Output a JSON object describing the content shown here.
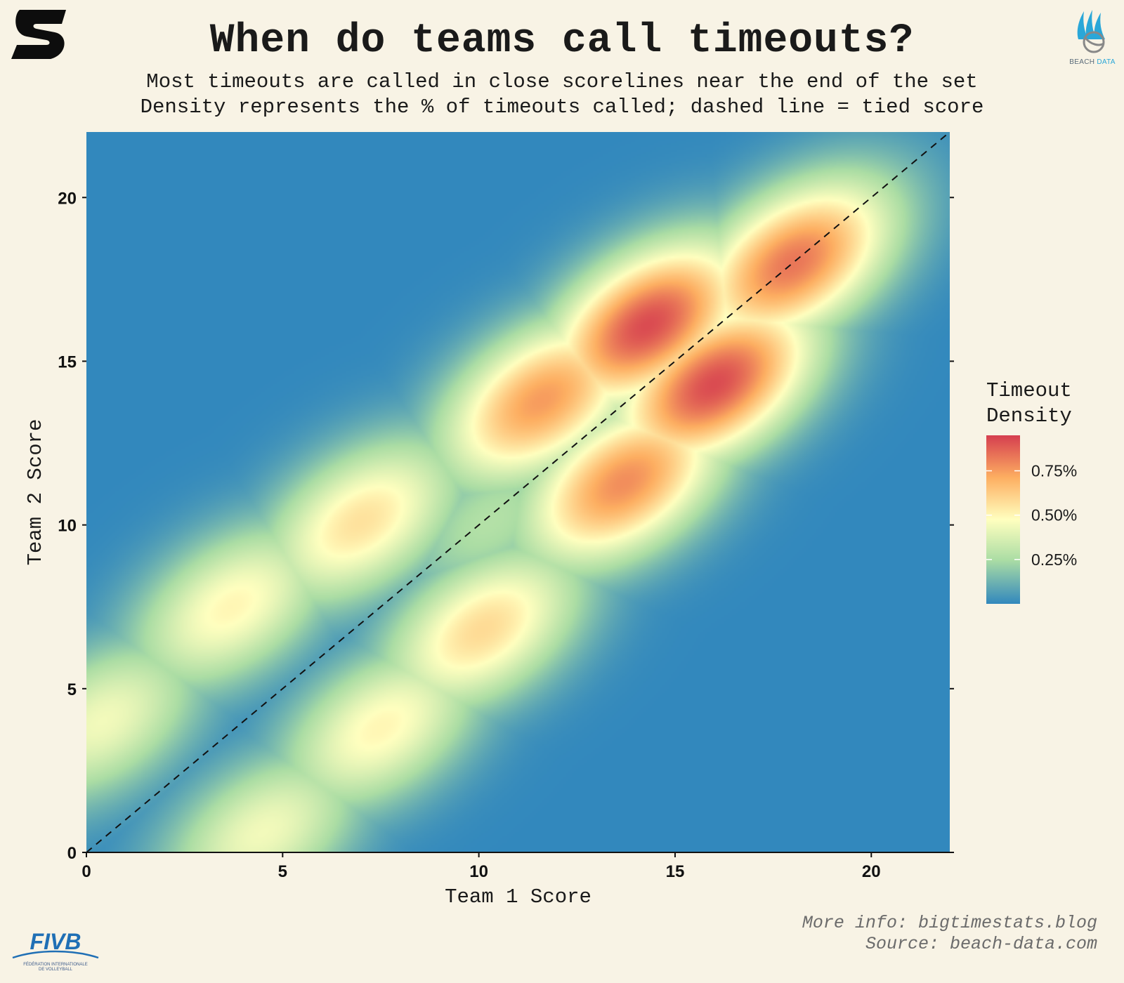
{
  "title": "When do teams call timeouts?",
  "subtitle_1": "Most timeouts are called in close scorelines near the end of the set",
  "subtitle_2": "Density represents the % of timeouts called; dashed line = tied score",
  "caption_1": "More info: bigtimestats.blog",
  "caption_2": "Source: beach-data.com",
  "logos": {
    "brand_icon": "s-brand-icon",
    "beach_data": "beach-volleyball-icon",
    "beach_data_label_1": "BEACH",
    "beach_data_label_2": "DATA",
    "fivb": "FIVB",
    "fivb_line_1": "FÉDÉRATION INTERNATIONALE",
    "fivb_line_2": "DE VOLLEYBALL"
  },
  "colors": {
    "background": "#f8f3e5",
    "scale_low": "#3288bd",
    "scale_mid": "#ffffbf",
    "scale_high": "#d53e4f"
  },
  "chart_data": {
    "type": "heatmap",
    "title": "When do teams call timeouts?",
    "xlabel": "Team 1 Score",
    "ylabel": "Team 2 Score",
    "xlim": [
      0,
      22
    ],
    "ylim": [
      0,
      22
    ],
    "x_ticks": [
      0,
      5,
      10,
      15,
      20
    ],
    "y_ticks": [
      0,
      5,
      10,
      15,
      20
    ],
    "reference_line": {
      "type": "dashed",
      "meaning": "tied score",
      "from": [
        0,
        0
      ],
      "to": [
        22,
        22
      ]
    },
    "legend": {
      "title_1": "Timeout",
      "title_2": "Density",
      "breaks": [
        "0.25%",
        "0.50%",
        "0.75%"
      ],
      "break_values": [
        0.25,
        0.5,
        0.75
      ],
      "range": [
        0.0,
        0.95
      ],
      "placement": "right"
    },
    "density_peaks": [
      {
        "team1": 14.3,
        "team2": 16.1,
        "density": 0.92
      },
      {
        "team1": 16.0,
        "team2": 14.3,
        "density": 0.92
      },
      {
        "team1": 18.0,
        "team2": 18.0,
        "density": 0.83
      },
      {
        "team1": 11.6,
        "team2": 13.8,
        "density": 0.75
      },
      {
        "team1": 13.7,
        "team2": 11.3,
        "density": 0.78
      },
      {
        "team1": 7.0,
        "team2": 10.1,
        "density": 0.56
      },
      {
        "team1": 10.1,
        "team2": 6.8,
        "density": 0.58
      },
      {
        "team1": 3.7,
        "team2": 7.5,
        "density": 0.5
      },
      {
        "team1": 7.5,
        "team2": 3.8,
        "density": 0.5
      },
      {
        "team1": 0.4,
        "team2": 4.0,
        "density": 0.44
      },
      {
        "team1": 4.5,
        "team2": 0.6,
        "density": 0.44
      },
      {
        "team1": 10.3,
        "team2": 10.1,
        "density": 0.27
      }
    ]
  }
}
